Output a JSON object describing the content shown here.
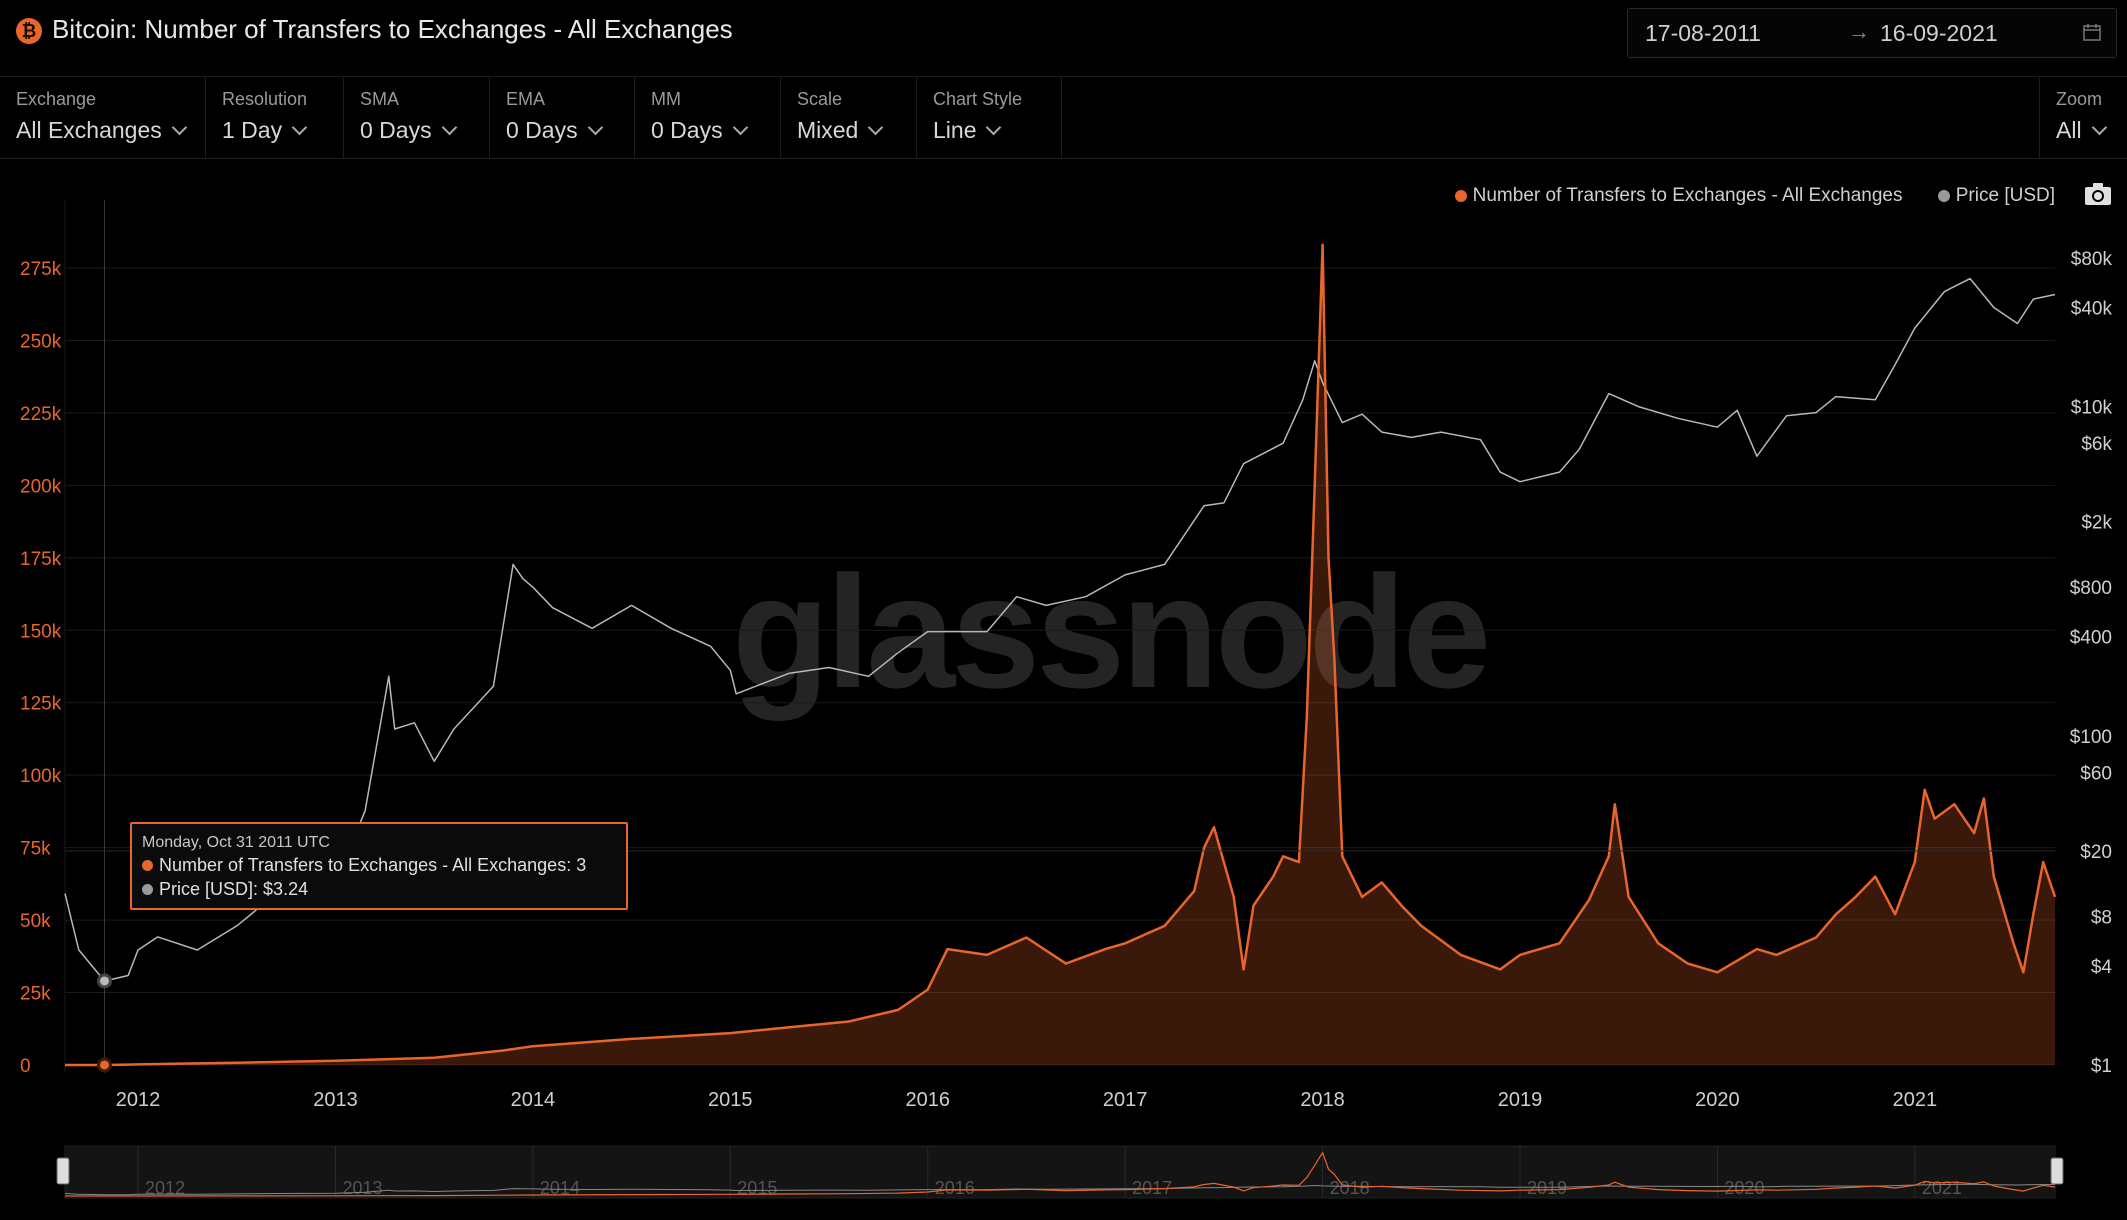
{
  "header": {
    "title": "Bitcoin: Number of Transfers to Exchanges - All Exchanges",
    "date_from": "17-08-2011",
    "date_arrow": "→",
    "date_to": "16-09-2021"
  },
  "controls": [
    {
      "label": "Exchange",
      "value": "All Exchanges"
    },
    {
      "label": "Resolution",
      "value": "1 Day"
    },
    {
      "label": "SMA",
      "value": "0 Days"
    },
    {
      "label": "EMA",
      "value": "0 Days"
    },
    {
      "label": "MM",
      "value": "0 Days"
    },
    {
      "label": "Scale",
      "value": "Mixed"
    },
    {
      "label": "Chart Style",
      "value": "Line"
    }
  ],
  "zoom": {
    "label": "Zoom",
    "value": "All"
  },
  "legend": {
    "series1": "Number of Transfers to Exchanges - All Exchanges",
    "series2": "Price [USD]"
  },
  "watermark": "glassnode",
  "tooltip": {
    "date": "Monday, Oct 31 2011 UTC",
    "series1": "Number of Transfers to Exchanges - All Exchanges: 3",
    "series2_label": "Price [USD]:",
    "series2_value": "$3.24"
  },
  "colors": {
    "transfers": "#e8652b",
    "price": "#b8b8b8",
    "background": "#000000",
    "grid": "#1a1a1a"
  },
  "chart_data": {
    "type": "line",
    "x_tick_labels": [
      "2012",
      "2013",
      "2014",
      "2015",
      "2016",
      "2017",
      "2018",
      "2019",
      "2020",
      "2021"
    ],
    "navigator_labels": [
      "2012",
      "2013",
      "2014",
      "2015",
      "2016",
      "2017",
      "2018",
      "2019",
      "2020",
      "2021"
    ],
    "y_left_ticks": [
      "0",
      "25k",
      "50k",
      "75k",
      "100k",
      "125k",
      "150k",
      "175k",
      "200k",
      "225k",
      "250k",
      "275k"
    ],
    "y_left_range": [
      0,
      300000
    ],
    "y_right_ticks": [
      {
        "label": "$1",
        "value": 1
      },
      {
        "label": "$4",
        "value": 4
      },
      {
        "label": "$8",
        "value": 8
      },
      {
        "label": "$20",
        "value": 20
      },
      {
        "label": "$60",
        "value": 60
      },
      {
        "label": "$100",
        "value": 100
      },
      {
        "label": "$400",
        "value": 400
      },
      {
        "label": "$800",
        "value": 800
      },
      {
        "label": "$2k",
        "value": 2000
      },
      {
        "label": "$6k",
        "value": 6000
      },
      {
        "label": "$10k",
        "value": 10000
      },
      {
        "label": "$40k",
        "value": 40000
      },
      {
        "label": "$80k",
        "value": 80000
      }
    ],
    "y_right_scale": "log",
    "grid": true,
    "legend_position": "top-right",
    "x_range": [
      2011.63,
      2021.71
    ],
    "series": [
      {
        "name": "Number of Transfers to Exchanges - All Exchanges",
        "axis": "left",
        "points": [
          [
            2011.63,
            0
          ],
          [
            2011.83,
            3
          ],
          [
            2012.0,
            200
          ],
          [
            2012.5,
            800
          ],
          [
            2013.0,
            1500
          ],
          [
            2013.5,
            2500
          ],
          [
            2013.85,
            5000
          ],
          [
            2014.0,
            6500
          ],
          [
            2014.5,
            9000
          ],
          [
            2015.0,
            11000
          ],
          [
            2015.3,
            13000
          ],
          [
            2015.6,
            15000
          ],
          [
            2015.85,
            19000
          ],
          [
            2016.0,
            26000
          ],
          [
            2016.1,
            40000
          ],
          [
            2016.3,
            38000
          ],
          [
            2016.5,
            44000
          ],
          [
            2016.7,
            35000
          ],
          [
            2016.9,
            40000
          ],
          [
            2017.0,
            42000
          ],
          [
            2017.2,
            48000
          ],
          [
            2017.35,
            60000
          ],
          [
            2017.4,
            75000
          ],
          [
            2017.45,
            82000
          ],
          [
            2017.55,
            58000
          ],
          [
            2017.6,
            33000
          ],
          [
            2017.65,
            55000
          ],
          [
            2017.75,
            65000
          ],
          [
            2017.8,
            72000
          ],
          [
            2017.88,
            70000
          ],
          [
            2017.92,
            120000
          ],
          [
            2017.96,
            200000
          ],
          [
            2018.0,
            283000
          ],
          [
            2018.03,
            175000
          ],
          [
            2018.06,
            140000
          ],
          [
            2018.1,
            72000
          ],
          [
            2018.2,
            58000
          ],
          [
            2018.3,
            63000
          ],
          [
            2018.4,
            55000
          ],
          [
            2018.5,
            48000
          ],
          [
            2018.7,
            38000
          ],
          [
            2018.9,
            33000
          ],
          [
            2019.0,
            38000
          ],
          [
            2019.2,
            42000
          ],
          [
            2019.35,
            57000
          ],
          [
            2019.45,
            72000
          ],
          [
            2019.48,
            90000
          ],
          [
            2019.55,
            58000
          ],
          [
            2019.7,
            42000
          ],
          [
            2019.85,
            35000
          ],
          [
            2020.0,
            32000
          ],
          [
            2020.2,
            40000
          ],
          [
            2020.3,
            38000
          ],
          [
            2020.5,
            44000
          ],
          [
            2020.6,
            52000
          ],
          [
            2020.7,
            58000
          ],
          [
            2020.8,
            65000
          ],
          [
            2020.9,
            52000
          ],
          [
            2021.0,
            70000
          ],
          [
            2021.05,
            95000
          ],
          [
            2021.1,
            85000
          ],
          [
            2021.2,
            90000
          ],
          [
            2021.3,
            80000
          ],
          [
            2021.35,
            92000
          ],
          [
            2021.4,
            65000
          ],
          [
            2021.5,
            42000
          ],
          [
            2021.55,
            32000
          ],
          [
            2021.6,
            52000
          ],
          [
            2021.65,
            70000
          ],
          [
            2021.71,
            58000
          ]
        ]
      },
      {
        "name": "Price [USD]",
        "axis": "right",
        "points": [
          [
            2011.63,
            11
          ],
          [
            2011.7,
            5
          ],
          [
            2011.83,
            3.24
          ],
          [
            2011.95,
            3.5
          ],
          [
            2012.0,
            5
          ],
          [
            2012.1,
            6
          ],
          [
            2012.3,
            5
          ],
          [
            2012.5,
            7
          ],
          [
            2012.7,
            11
          ],
          [
            2012.85,
            12
          ],
          [
            2013.0,
            13
          ],
          [
            2013.15,
            35
          ],
          [
            2013.27,
            230
          ],
          [
            2013.3,
            110
          ],
          [
            2013.4,
            120
          ],
          [
            2013.5,
            70
          ],
          [
            2013.6,
            110
          ],
          [
            2013.8,
            200
          ],
          [
            2013.9,
            1100
          ],
          [
            2013.95,
            900
          ],
          [
            2014.0,
            800
          ],
          [
            2014.1,
            600
          ],
          [
            2014.3,
            450
          ],
          [
            2014.5,
            620
          ],
          [
            2014.7,
            450
          ],
          [
            2014.9,
            350
          ],
          [
            2015.0,
            250
          ],
          [
            2015.03,
            180
          ],
          [
            2015.3,
            240
          ],
          [
            2015.5,
            260
          ],
          [
            2015.7,
            230
          ],
          [
            2015.85,
            320
          ],
          [
            2016.0,
            430
          ],
          [
            2016.3,
            430
          ],
          [
            2016.45,
            700
          ],
          [
            2016.6,
            620
          ],
          [
            2016.8,
            700
          ],
          [
            2017.0,
            950
          ],
          [
            2017.2,
            1100
          ],
          [
            2017.4,
            2500
          ],
          [
            2017.5,
            2600
          ],
          [
            2017.6,
            4500
          ],
          [
            2017.8,
            6000
          ],
          [
            2017.9,
            11000
          ],
          [
            2017.96,
            19000
          ],
          [
            2018.0,
            14000
          ],
          [
            2018.1,
            8000
          ],
          [
            2018.2,
            9000
          ],
          [
            2018.3,
            7000
          ],
          [
            2018.45,
            6500
          ],
          [
            2018.6,
            7000
          ],
          [
            2018.8,
            6300
          ],
          [
            2018.9,
            4000
          ],
          [
            2019.0,
            3500
          ],
          [
            2019.2,
            4000
          ],
          [
            2019.3,
            5500
          ],
          [
            2019.45,
            12000
          ],
          [
            2019.6,
            10000
          ],
          [
            2019.8,
            8500
          ],
          [
            2020.0,
            7500
          ],
          [
            2020.1,
            9500
          ],
          [
            2020.2,
            5000
          ],
          [
            2020.35,
            8800
          ],
          [
            2020.5,
            9200
          ],
          [
            2020.6,
            11500
          ],
          [
            2020.8,
            11000
          ],
          [
            2020.9,
            18000
          ],
          [
            2021.0,
            30000
          ],
          [
            2021.15,
            50000
          ],
          [
            2021.28,
            60000
          ],
          [
            2021.4,
            40000
          ],
          [
            2021.52,
            32000
          ],
          [
            2021.6,
            45000
          ],
          [
            2021.71,
            48000
          ]
        ]
      }
    ]
  }
}
